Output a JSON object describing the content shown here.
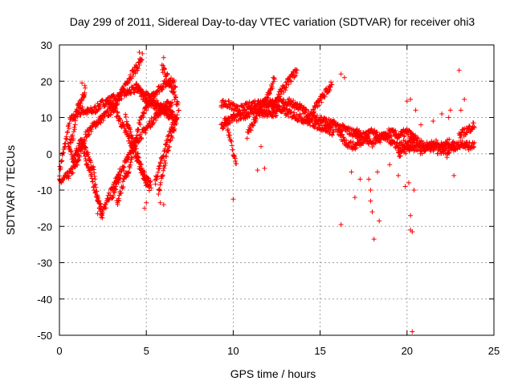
{
  "chart_data": {
    "type": "scatter",
    "title": "Day 299 of 2011, Sidereal Day-to-day VTEC variation (SDTVAR) for receiver ohi3",
    "xlabel": "GPS time / hours",
    "ylabel": "SDTVAR / TECUs",
    "xlim": [
      0,
      25
    ],
    "ylim": [
      -50,
      30
    ],
    "xticks": [
      0,
      5,
      10,
      15,
      20,
      25
    ],
    "yticks": [
      -50,
      -40,
      -30,
      -20,
      -10,
      0,
      10,
      20,
      30
    ],
    "xtick_labels": [
      "0",
      "5",
      "10",
      "15",
      "20",
      "25"
    ],
    "ytick_labels": [
      "-50",
      "-40",
      "-30",
      "-20",
      "-10",
      "0",
      "10",
      "20",
      "30"
    ],
    "grid": true,
    "marker": "+",
    "color": "#ff0000",
    "tracks": [
      {
        "name": "track-a",
        "points": [
          [
            0,
            -5
          ],
          [
            0.3,
            2
          ],
          [
            0.6,
            9
          ],
          [
            1.0,
            11
          ],
          [
            1.3,
            12
          ],
          [
            1.6,
            11.5
          ],
          [
            2.0,
            12
          ],
          [
            2.5,
            14
          ],
          [
            3.0,
            15
          ],
          [
            3.5,
            16
          ],
          [
            4.0,
            17
          ],
          [
            4.5,
            18
          ],
          [
            5.0,
            16
          ],
          [
            5.5,
            14
          ],
          [
            6.0,
            12
          ],
          [
            6.5,
            10
          ]
        ]
      },
      {
        "name": "track-b",
        "points": [
          [
            0,
            -8
          ],
          [
            0.5,
            -6
          ],
          [
            1.0,
            -3
          ],
          [
            1.5,
            5
          ],
          [
            2.0,
            8
          ],
          [
            2.5,
            10
          ],
          [
            3.0,
            12
          ],
          [
            3.5,
            16
          ],
          [
            4.0,
            21
          ],
          [
            4.5,
            24
          ],
          [
            4.8,
            27
          ]
        ]
      },
      {
        "name": "track-c",
        "points": [
          [
            0.5,
            2
          ],
          [
            0.8,
            -2
          ],
          [
            1.0,
            1
          ],
          [
            1.3,
            4
          ],
          [
            1.6,
            0
          ],
          [
            2.0,
            -5
          ],
          [
            2.2,
            -12
          ],
          [
            2.4,
            -16
          ],
          [
            2.6,
            -15
          ],
          [
            3.0,
            -10
          ],
          [
            3.5,
            -5
          ]
        ]
      },
      {
        "name": "track-d",
        "points": [
          [
            0.8,
            -3
          ],
          [
            1.0,
            -1
          ],
          [
            1.3,
            3
          ],
          [
            1.6,
            -3
          ],
          [
            2.0,
            -9
          ],
          [
            2.3,
            -14
          ],
          [
            2.5,
            -17
          ]
        ]
      },
      {
        "name": "track-e",
        "points": [
          [
            0.6,
            3
          ],
          [
            0.8,
            5
          ],
          [
            1.0,
            12
          ],
          [
            1.2,
            14
          ],
          [
            1.4,
            16
          ],
          [
            1.5,
            19
          ]
        ]
      },
      {
        "name": "track-f",
        "points": [
          [
            3.3,
            -14
          ],
          [
            3.6,
            -9
          ],
          [
            4.0,
            -4
          ],
          [
            4.3,
            2
          ],
          [
            4.6,
            8
          ],
          [
            5.0,
            13
          ],
          [
            5.5,
            17
          ],
          [
            6.0,
            19
          ],
          [
            6.4,
            20
          ],
          [
            6.7,
            19
          ]
        ]
      },
      {
        "name": "track-g",
        "points": [
          [
            3.0,
            -12
          ],
          [
            3.5,
            -6
          ],
          [
            4.0,
            0
          ],
          [
            4.5,
            4
          ],
          [
            5.0,
            7
          ],
          [
            5.5,
            10
          ],
          [
            6.0,
            13
          ],
          [
            6.5,
            14
          ]
        ]
      },
      {
        "name": "track-h",
        "points": [
          [
            2.8,
            14
          ],
          [
            3.2,
            12
          ],
          [
            3.6,
            8
          ],
          [
            4.0,
            4
          ],
          [
            4.3,
            1
          ],
          [
            4.6,
            -3
          ],
          [
            4.9,
            -7
          ],
          [
            5.2,
            -10
          ]
        ]
      },
      {
        "name": "track-i",
        "points": [
          [
            3.8,
            10
          ],
          [
            4.2,
            4
          ],
          [
            4.6,
            -2
          ],
          [
            5.0,
            -7
          ],
          [
            5.3,
            -9
          ]
        ]
      },
      {
        "name": "track-j",
        "points": [
          [
            5.5,
            -8
          ],
          [
            5.8,
            -3
          ],
          [
            6.1,
            2
          ],
          [
            6.4,
            7
          ],
          [
            6.8,
            10
          ]
        ]
      },
      {
        "name": "track-k",
        "points": [
          [
            5.7,
            -11
          ],
          [
            5.9,
            -6
          ],
          [
            6.1,
            -2
          ],
          [
            6.4,
            4
          ],
          [
            6.7,
            8
          ]
        ]
      },
      {
        "name": "track-l",
        "points": [
          [
            4.4,
            19
          ],
          [
            4.8,
            16
          ],
          [
            5.2,
            14
          ],
          [
            5.6,
            13
          ],
          [
            6.0,
            12
          ],
          [
            6.4,
            11
          ],
          [
            6.8,
            10
          ]
        ]
      },
      {
        "name": "track-m",
        "points": [
          [
            5.9,
            24
          ],
          [
            6.1,
            22
          ],
          [
            6.4,
            19
          ],
          [
            6.7,
            15
          ],
          [
            6.9,
            12
          ]
        ]
      },
      {
        "name": "track-n",
        "points": [
          [
            9.3,
            14
          ],
          [
            9.8,
            13.5
          ],
          [
            10.3,
            12
          ],
          [
            10.8,
            13
          ],
          [
            11.3,
            14
          ],
          [
            11.8,
            14.5
          ],
          [
            12.3,
            14
          ],
          [
            12.8,
            14
          ],
          [
            13.3,
            14.5
          ]
        ]
      },
      {
        "name": "track-o",
        "points": [
          [
            9.3,
            7
          ],
          [
            9.6,
            9
          ],
          [
            10.0,
            10
          ],
          [
            10.4,
            10
          ],
          [
            10.8,
            11
          ],
          [
            11.2,
            12
          ],
          [
            11.6,
            11
          ],
          [
            12.0,
            11
          ],
          [
            12.5,
            11
          ]
        ]
      },
      {
        "name": "track-p",
        "points": [
          [
            10.8,
            5
          ],
          [
            11.2,
            9
          ],
          [
            11.5,
            12
          ],
          [
            11.8,
            14
          ],
          [
            12.0,
            16
          ],
          [
            12.2,
            18
          ],
          [
            12.4,
            22
          ]
        ]
      },
      {
        "name": "track-q",
        "points": [
          [
            12.3,
            13
          ],
          [
            12.6,
            16
          ],
          [
            12.9,
            18
          ],
          [
            13.2,
            20
          ],
          [
            13.5,
            22
          ],
          [
            13.7,
            23
          ]
        ]
      },
      {
        "name": "track-r",
        "points": [
          [
            13.3,
            14
          ],
          [
            13.8,
            13
          ],
          [
            14.3,
            11
          ],
          [
            14.8,
            10
          ],
          [
            15.3,
            9
          ],
          [
            15.8,
            8
          ],
          [
            16.3,
            7
          ],
          [
            16.8,
            6
          ],
          [
            17.3,
            5
          ]
        ]
      },
      {
        "name": "track-s",
        "points": [
          [
            11.8,
            14
          ],
          [
            12.3,
            13
          ],
          [
            12.8,
            12
          ],
          [
            13.3,
            11
          ],
          [
            13.8,
            10
          ],
          [
            14.3,
            9
          ],
          [
            14.8,
            8
          ],
          [
            15.3,
            7
          ],
          [
            15.8,
            6
          ]
        ]
      },
      {
        "name": "track-t",
        "points": [
          [
            14.6,
            12
          ],
          [
            14.9,
            14
          ],
          [
            15.2,
            16
          ],
          [
            15.5,
            18
          ],
          [
            15.7,
            20
          ]
        ]
      },
      {
        "name": "track-u",
        "points": [
          [
            16.0,
            6
          ],
          [
            16.5,
            3
          ],
          [
            17.0,
            2
          ],
          [
            17.5,
            4
          ],
          [
            18.0,
            3
          ],
          [
            18.5,
            5
          ],
          [
            19.0,
            4
          ],
          [
            19.5,
            2
          ],
          [
            20.0,
            3
          ]
        ]
      },
      {
        "name": "track-v",
        "points": [
          [
            17.0,
            6
          ],
          [
            17.5,
            5
          ],
          [
            18.0,
            6
          ],
          [
            18.5,
            4
          ],
          [
            19.0,
            6
          ],
          [
            19.5,
            5
          ],
          [
            20.0,
            6
          ],
          [
            20.5,
            4
          ]
        ]
      },
      {
        "name": "track-w",
        "points": [
          [
            20.0,
            2
          ],
          [
            20.4,
            4
          ],
          [
            20.8,
            3
          ],
          [
            21.2,
            2
          ],
          [
            21.6,
            3
          ],
          [
            22.0,
            2
          ],
          [
            22.4,
            3
          ],
          [
            22.8,
            2
          ],
          [
            23.2,
            3
          ],
          [
            23.6,
            2
          ],
          [
            23.9,
            3
          ]
        ]
      },
      {
        "name": "track-x",
        "points": [
          [
            19.5,
            0
          ],
          [
            19.9,
            1
          ],
          [
            20.3,
            2
          ],
          [
            20.8,
            1
          ],
          [
            21.3,
            2
          ],
          [
            21.8,
            1
          ],
          [
            22.3,
            1
          ],
          [
            22.8,
            2
          ]
        ]
      },
      {
        "name": "track-y",
        "points": [
          [
            23.0,
            5
          ],
          [
            23.3,
            6
          ],
          [
            23.6,
            7
          ],
          [
            23.9,
            8
          ]
        ]
      },
      {
        "name": "track-z",
        "points": [
          [
            9.5,
            10
          ],
          [
            9.8,
            5
          ],
          [
            10.0,
            0
          ],
          [
            10.2,
            -3
          ]
        ]
      }
    ],
    "outliers": [
      [
        10.0,
        -12.5
      ],
      [
        11.4,
        -4.5
      ],
      [
        11.6,
        2
      ],
      [
        11.8,
        -4
      ],
      [
        16.2,
        22
      ],
      [
        16.4,
        21
      ],
      [
        16.2,
        -19.5
      ],
      [
        16.8,
        -5
      ],
      [
        17.0,
        -12
      ],
      [
        17.3,
        -7
      ],
      [
        17.8,
        -7
      ],
      [
        17.9,
        -10
      ],
      [
        17.9,
        -13
      ],
      [
        18.0,
        -16
      ],
      [
        18.1,
        -23.5
      ],
      [
        18.3,
        -5
      ],
      [
        18.4,
        -18.5
      ],
      [
        19.0,
        -3
      ],
      [
        19.5,
        -6
      ],
      [
        19.9,
        -9
      ],
      [
        20.1,
        -8
      ],
      [
        20.2,
        -17
      ],
      [
        20.2,
        -21
      ],
      [
        20.3,
        -21.5
      ],
      [
        20.3,
        -49
      ],
      [
        20.4,
        -10
      ],
      [
        20.0,
        14.5
      ],
      [
        20.2,
        15
      ],
      [
        20.5,
        12
      ],
      [
        20.8,
        8
      ],
      [
        21.5,
        9
      ],
      [
        22.0,
        11
      ],
      [
        22.4,
        10
      ],
      [
        22.5,
        12
      ],
      [
        23.0,
        23
      ],
      [
        23.3,
        15
      ],
      [
        23.1,
        12
      ],
      [
        22.7,
        -6
      ],
      [
        22.3,
        -1
      ],
      [
        4.9,
        -15
      ],
      [
        5.0,
        -13.5
      ],
      [
        6.0,
        26.5
      ],
      [
        4.6,
        28
      ],
      [
        2.4,
        -17.5
      ],
      [
        2.2,
        -16.5
      ],
      [
        1.3,
        19.5
      ],
      [
        1.4,
        16
      ],
      [
        1.6,
        12
      ],
      [
        5.8,
        -13.5
      ],
      [
        6.0,
        -14
      ]
    ]
  }
}
